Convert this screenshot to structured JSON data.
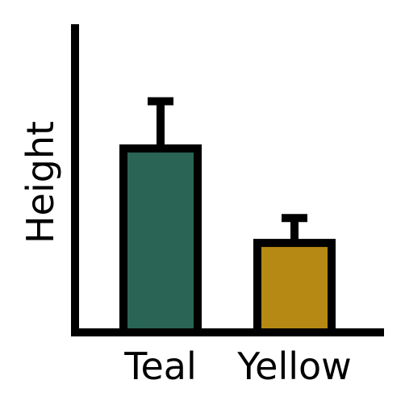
{
  "chart_data": {
    "type": "bar",
    "categories": [
      "Teal",
      "Yellow"
    ],
    "values": [
      7.4,
      3.6
    ],
    "errors": [
      1.9,
      1.0
    ],
    "colors": [
      "#2a6454",
      "#b58913"
    ],
    "ylabel": "Height",
    "xlabel": "",
    "title": "",
    "ylim": [
      0,
      12.4
    ],
    "grid": false,
    "legend": "none"
  }
}
